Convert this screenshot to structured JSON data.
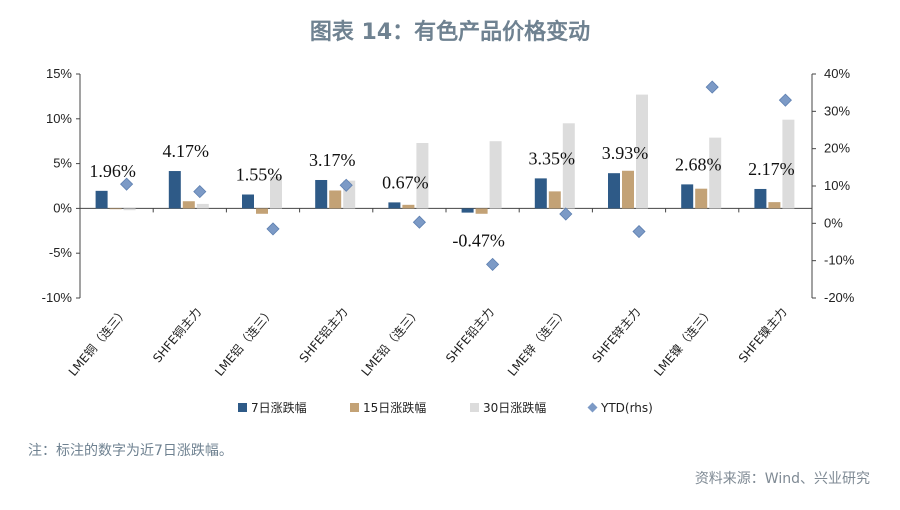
{
  "title": "图表 14：有色产品价格变动",
  "note": "注：标注的数字为近7日涨跌幅。",
  "source": "资料来源：Wind、兴业研究",
  "colors": {
    "s7": "#2e5a87",
    "s15": "#c3a276",
    "s30": "#dcdcdc",
    "ytd": "#7c9ac6",
    "axis": "#444444"
  },
  "chart_data": {
    "type": "bar",
    "categories": [
      "LME铜（连三）",
      "SHFE铜主力",
      "LME铝（连三）",
      "SHFE铝主力",
      "LME铅（连三）",
      "SHFE铅主力",
      "LME锌（连三）",
      "SHFE锌主力",
      "LME镍（连三）",
      "SHFE镍主力"
    ],
    "series": [
      {
        "name": "7日涨跌幅",
        "axis": "left",
        "values": [
          1.96,
          4.17,
          1.55,
          3.17,
          0.67,
          -0.47,
          3.35,
          3.93,
          2.68,
          2.17
        ]
      },
      {
        "name": "15日涨跌幅",
        "axis": "left",
        "values": [
          0.0,
          0.8,
          -0.6,
          2.0,
          0.4,
          -0.6,
          1.9,
          4.2,
          2.2,
          0.7
        ]
      },
      {
        "name": "30日涨跌幅",
        "axis": "left",
        "values": [
          -0.2,
          0.5,
          3.5,
          3.1,
          7.3,
          7.5,
          9.5,
          12.7,
          7.9,
          9.9
        ]
      },
      {
        "name": "YTD(rhs)",
        "axis": "right",
        "type": "scatter",
        "values": [
          10.5,
          8.5,
          -1.5,
          10.2,
          0.3,
          -11,
          2.5,
          -2.2,
          36.5,
          33
        ]
      }
    ],
    "data_labels": [
      "1.96%",
      "4.17%",
      "1.55%",
      "3.17%",
      "0.67%",
      "-0.47%",
      "3.35%",
      "3.93%",
      "2.68%",
      "2.17%"
    ],
    "y_left": {
      "range": [
        -10,
        15
      ],
      "ticks": [
        "-10%",
        "-5%",
        "0%",
        "5%",
        "10%",
        "15%"
      ]
    },
    "y_right": {
      "range": [
        -20,
        40
      ],
      "ticks": [
        "-20%",
        "-10%",
        "0%",
        "10%",
        "20%",
        "30%",
        "40%"
      ]
    },
    "legend": [
      "7日涨跌幅",
      "15日涨跌幅",
      "30日涨跌幅",
      "YTD(rhs)"
    ],
    "legend_position": "bottom"
  }
}
